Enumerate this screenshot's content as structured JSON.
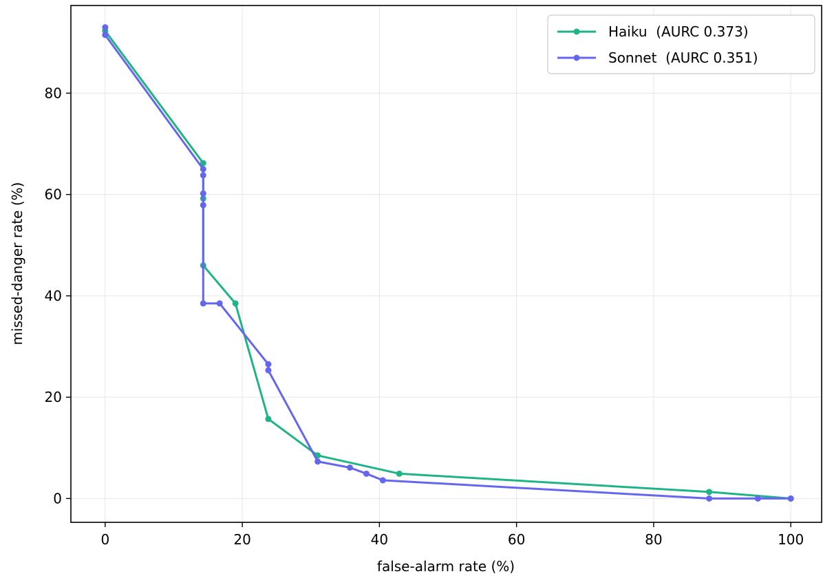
{
  "chart_data": {
    "type": "line",
    "title": "",
    "xlabel": "false-alarm rate (%)",
    "ylabel": "missed-danger rate (%)",
    "xlim": [
      -5,
      104.5
    ],
    "ylim": [
      -4.7,
      97.3
    ],
    "xticks": [
      0,
      20,
      40,
      60,
      80,
      100
    ],
    "yticks": [
      0,
      20,
      40,
      60,
      80
    ],
    "grid": true,
    "legend_position": "top-right",
    "series": [
      {
        "name": "Haiku  (AURC 0.373)",
        "color": "#1fb386",
        "points": [
          [
            0,
            92.3
          ],
          [
            14.3,
            66.2
          ],
          [
            14.3,
            59.2
          ],
          [
            14.3,
            46.0
          ],
          [
            19.0,
            38.5
          ],
          [
            23.8,
            15.7
          ],
          [
            31.0,
            8.5
          ],
          [
            42.9,
            4.9
          ],
          [
            88.1,
            1.3
          ],
          [
            100,
            0
          ]
        ]
      },
      {
        "name": "Sonnet  (AURC 0.351)",
        "color": "#6466ee",
        "points": [
          [
            0,
            93.0
          ],
          [
            0,
            91.5
          ],
          [
            14.3,
            65.0
          ],
          [
            14.3,
            63.8
          ],
          [
            14.3,
            60.2
          ],
          [
            14.3,
            57.9
          ],
          [
            14.3,
            38.5
          ],
          [
            16.7,
            38.5
          ],
          [
            23.8,
            26.5
          ],
          [
            23.8,
            25.3
          ],
          [
            31.0,
            7.3
          ],
          [
            35.7,
            6.1
          ],
          [
            38.1,
            4.9
          ],
          [
            40.5,
            3.6
          ],
          [
            88.1,
            0
          ],
          [
            95.2,
            0
          ],
          [
            100,
            0
          ]
        ]
      }
    ]
  }
}
